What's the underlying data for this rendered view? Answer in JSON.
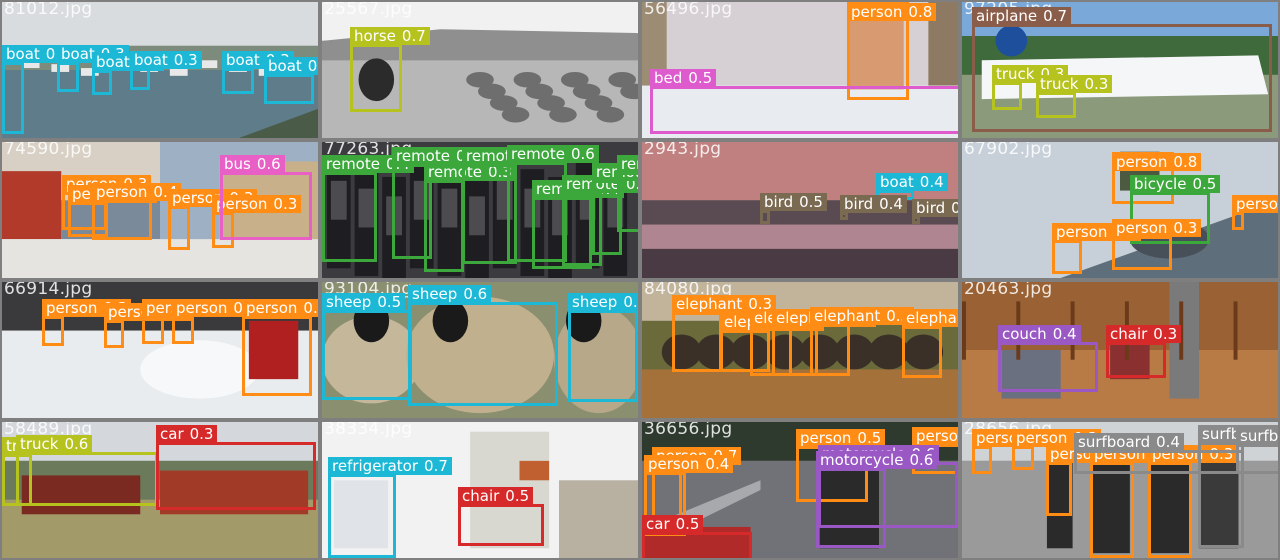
{
  "palette": {
    "boat": "#1cb8d6",
    "horse": "#b6c21e",
    "person": "#ff8c14",
    "bed": "#de5bcd",
    "airplane": "#8a5d4a",
    "truck": "#b6c21e",
    "bus": "#e85fc6",
    "remote": "#3ca83c",
    "bird": "#7a6a52",
    "bicycle": "#3ca83c",
    "sheep": "#1cb8d6",
    "elephant": "#ff8c14",
    "couch": "#9a58c4",
    "chair": "#d62a2a",
    "refrigerator": "#1cb8d6",
    "car": "#d62a2a",
    "motorcycle": "#9a58c4",
    "surfboard": "#8a8a8a"
  },
  "tiles": [
    {
      "filename": "81012.jpg",
      "scene": "harbor",
      "detections": [
        {
          "cls": "boat",
          "conf": "0.3"
        },
        {
          "cls": "boat",
          "conf": "0.3"
        },
        {
          "cls": "boat",
          "conf": "0.3"
        },
        {
          "cls": "boat",
          "conf": "0.3"
        },
        {
          "cls": "boat",
          "conf": "0.3"
        },
        {
          "cls": "boat",
          "conf": "0.3"
        }
      ]
    },
    {
      "filename": "25567.jpg",
      "scene": "field",
      "detections": [
        {
          "cls": "horse",
          "conf": "0.7"
        }
      ]
    },
    {
      "filename": "56496.jpg",
      "scene": "bedroom",
      "detections": [
        {
          "cls": "person",
          "conf": "0.8"
        },
        {
          "cls": "bed",
          "conf": "0.5"
        }
      ]
    },
    {
      "filename": "97205.jpg",
      "scene": "airport",
      "detections": [
        {
          "cls": "airplane",
          "conf": "0.7"
        },
        {
          "cls": "truck",
          "conf": "0.3"
        },
        {
          "cls": "truck",
          "conf": "0.3"
        }
      ]
    },
    {
      "filename": "74590.jpg",
      "scene": "street",
      "detections": [
        {
          "cls": "person",
          "conf": "0.3"
        },
        {
          "cls": "person",
          "conf": "0.3"
        },
        {
          "cls": "person",
          "conf": "0.4"
        },
        {
          "cls": "person",
          "conf": "0.3"
        },
        {
          "cls": "person",
          "conf": "0.3"
        },
        {
          "cls": "bus",
          "conf": "0.6"
        }
      ]
    },
    {
      "filename": "77263.jpg",
      "scene": "remotes",
      "detections": [
        {
          "cls": "remote",
          "conf": "0.4"
        },
        {
          "cls": "remote",
          "conf": "0.4"
        },
        {
          "cls": "remote",
          "conf": "0.3"
        },
        {
          "cls": "remote",
          "conf": "0.3"
        },
        {
          "cls": "remote",
          "conf": "0.6"
        },
        {
          "cls": "remote",
          "conf": "0.4"
        },
        {
          "cls": "remote",
          "conf": "0.6"
        },
        {
          "cls": "remote",
          "conf": "0.5"
        },
        {
          "cls": "remote",
          "conf": "0.5"
        }
      ]
    },
    {
      "filename": "2943.jpg",
      "scene": "sunset",
      "detections": [
        {
          "cls": "boat",
          "conf": "0.4"
        },
        {
          "cls": "bird",
          "conf": "0.5"
        },
        {
          "cls": "bird",
          "conf": "0.4"
        },
        {
          "cls": "bird",
          "conf": "0.4"
        }
      ]
    },
    {
      "filename": "67902.jpg",
      "scene": "bikepark",
      "detections": [
        {
          "cls": "person",
          "conf": "0.8"
        },
        {
          "cls": "bicycle",
          "conf": "0.5"
        },
        {
          "cls": "person",
          "conf": "0.3"
        },
        {
          "cls": "person",
          "conf": "0.3"
        },
        {
          "cls": "person",
          "conf": "0.3"
        }
      ]
    },
    {
      "filename": "66914.jpg",
      "scene": "snow",
      "detections": [
        {
          "cls": "person",
          "conf": "0.3"
        },
        {
          "cls": "person",
          "conf": "0.3"
        },
        {
          "cls": "person",
          "conf": "0.3"
        },
        {
          "cls": "person",
          "conf": "0.3"
        },
        {
          "cls": "person",
          "conf": "0.3"
        }
      ]
    },
    {
      "filename": "93104.jpg",
      "scene": "sheep",
      "detections": [
        {
          "cls": "sheep",
          "conf": "0.5"
        },
        {
          "cls": "sheep",
          "conf": "0.6"
        },
        {
          "cls": "sheep",
          "conf": "0.5"
        }
      ]
    },
    {
      "filename": "84080.jpg",
      "scene": "savanna",
      "detections": [
        {
          "cls": "elephant",
          "conf": "0.3"
        },
        {
          "cls": "elephant",
          "conf": "0.3"
        },
        {
          "cls": "elephant",
          "conf": "0.3"
        },
        {
          "cls": "elephant",
          "conf": "0.3"
        },
        {
          "cls": "elephant",
          "conf": "0.3"
        },
        {
          "cls": "elephant",
          "conf": "0.3"
        }
      ]
    },
    {
      "filename": "20463.jpg",
      "scene": "cabin",
      "detections": [
        {
          "cls": "couch",
          "conf": "0.4"
        },
        {
          "cls": "chair",
          "conf": "0.3"
        }
      ]
    },
    {
      "filename": "58489.jpg",
      "scene": "lot",
      "detections": [
        {
          "cls": "truck",
          "conf": "0.5"
        },
        {
          "cls": "truck",
          "conf": "0.6"
        },
        {
          "cls": "car",
          "conf": "0.3"
        }
      ]
    },
    {
      "filename": "38334.jpg",
      "scene": "kitchen",
      "detections": [
        {
          "cls": "refrigerator",
          "conf": "0.7"
        },
        {
          "cls": "chair",
          "conf": "0.5"
        }
      ]
    },
    {
      "filename": "36656.jpg",
      "scene": "road",
      "detections": [
        {
          "cls": "person",
          "conf": "0.7"
        },
        {
          "cls": "person",
          "conf": "0.4"
        },
        {
          "cls": "person",
          "conf": "0.5"
        },
        {
          "cls": "person",
          "conf": "0.5"
        },
        {
          "cls": "motorcycle",
          "conf": "0.6"
        },
        {
          "cls": "motorcycle",
          "conf": "0.6"
        },
        {
          "cls": "car",
          "conf": "0.5"
        }
      ]
    },
    {
      "filename": "28656.jpg",
      "scene": "beach",
      "detections": [
        {
          "cls": "person",
          "conf": "0.3"
        },
        {
          "cls": "person",
          "conf": "0.3"
        },
        {
          "cls": "person",
          "conf": "0.3"
        },
        {
          "cls": "person",
          "conf": "0.3"
        },
        {
          "cls": "person",
          "conf": "0.3"
        },
        {
          "cls": "surfboard",
          "conf": "0.3"
        },
        {
          "cls": "surfboard",
          "conf": "0.4"
        },
        {
          "cls": "surfboard",
          "conf": "0.3"
        }
      ]
    }
  ]
}
